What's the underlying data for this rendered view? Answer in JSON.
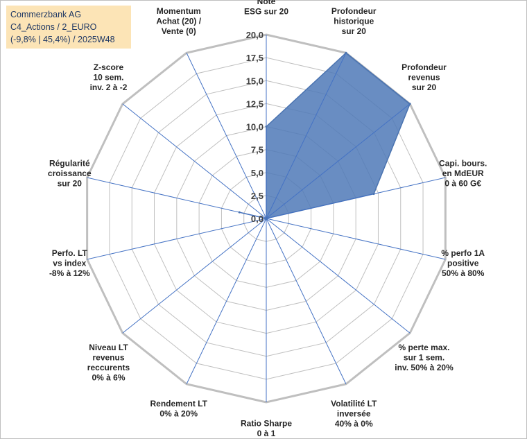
{
  "chart_data": {
    "type": "radar",
    "title_lines": [
      "Commerzbank AG",
      "C4_Actions / 2_EURO",
      "(-9,8% | 45,4%) / 2025W48"
    ],
    "r_range": [
      0,
      20
    ],
    "r_ticks": [
      "0,0",
      "2,5",
      "5,0",
      "7,5",
      "10,0",
      "12,5",
      "15,0",
      "17,5",
      "20,0"
    ],
    "axes": [
      {
        "label": [
          "Note",
          "ESG sur 20"
        ],
        "value": 10
      },
      {
        "label": [
          "Profondeur",
          "historique",
          "sur 20"
        ],
        "value": 20
      },
      {
        "label": [
          "Profondeur",
          "revenus",
          "sur 20"
        ],
        "value": 20
      },
      {
        "label": [
          "Capi. bours.",
          "en MdEUR",
          "0 à 60 G€"
        ],
        "value": 12
      },
      {
        "label": [
          "% perfo 1A",
          "positive",
          "50% à 80%"
        ],
        "value": 0
      },
      {
        "label": [
          "% perte max.",
          "sur 1 sem.",
          "inv. 50% à 20%"
        ],
        "value": 0
      },
      {
        "label": [
          "Volatilité LT",
          "inversée",
          "40% à 0%"
        ],
        "value": 0
      },
      {
        "label": [
          "Ratio Sharpe",
          "0 à 1"
        ],
        "value": 0
      },
      {
        "label": [
          "Rendement LT",
          "0% à 20%"
        ],
        "value": 0
      },
      {
        "label": [
          "Niveau LT",
          "revenus",
          "reccurents",
          "0% à 6%"
        ],
        "value": 0
      },
      {
        "label": [
          "Perfo. LT",
          "vs index",
          "-8% à 12%"
        ],
        "value": 0
      },
      {
        "label": [
          "Régularité",
          "croissance",
          "sur 20"
        ],
        "value": 3
      },
      {
        "label": [
          "Z-score",
          "10 sem.",
          "inv. 2 à -2"
        ],
        "value": 0
      },
      {
        "label": [
          "Momentum",
          "Achat (20) /",
          "Vente (0)"
        ],
        "value": 0
      }
    ],
    "series": [
      {
        "name": "Commerzbank AG",
        "color": "#4a73b0",
        "fill": "#4f79b7",
        "grid_color": "#bfbfbf",
        "axis_color": "#4472c4"
      }
    ]
  }
}
